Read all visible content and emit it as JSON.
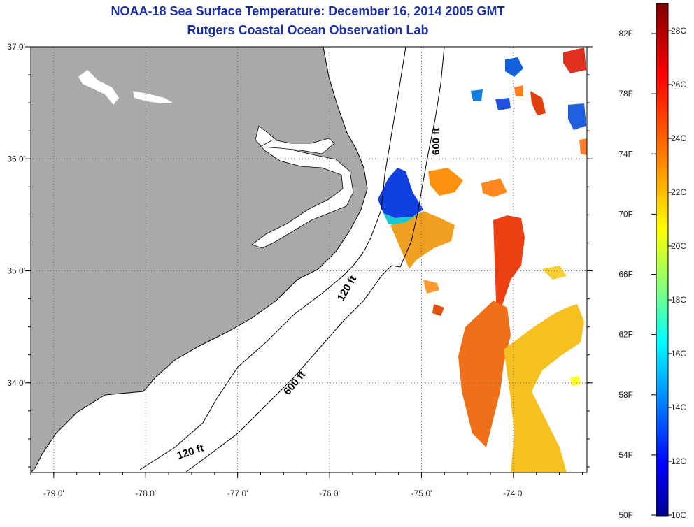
{
  "title": {
    "line1": "NOAA-18 Sea Surface Temperature:  December 16, 2014 2005 GMT",
    "line2": "Rutgers Coastal Ocean Observation Lab"
  },
  "map": {
    "lon_range": [
      -79.25,
      -73.2
    ],
    "lat_range": [
      33.2,
      37.0
    ],
    "lon_ticks": [
      {
        "value": -79,
        "label": "-79 0'"
      },
      {
        "value": -78,
        "label": "-78 0'"
      },
      {
        "value": -77,
        "label": "-77 0'"
      },
      {
        "value": -76,
        "label": "-76 0'"
      },
      {
        "value": -75,
        "label": "-75 0'"
      },
      {
        "value": -74,
        "label": "-74 0'"
      }
    ],
    "lat_ticks": [
      {
        "value": 37,
        "label": "37 0'"
      },
      {
        "value": 36,
        "label": "36 0'"
      },
      {
        "value": 35,
        "label": "35 0'"
      },
      {
        "value": 34,
        "label": "34 0'"
      }
    ],
    "contour_labels": [
      "600 ft",
      "120 ft",
      "600 ft",
      "120 ft"
    ],
    "land_color": "#a9a9a9"
  },
  "colorbar": {
    "fahrenheit_labels": [
      "82F",
      "78F",
      "74F",
      "70F",
      "66F",
      "62F",
      "58F",
      "54F",
      "50F"
    ],
    "celsius_labels": [
      "28C",
      "26C",
      "24C",
      "22C",
      "20C",
      "18C",
      "16C",
      "14C",
      "12C",
      "10C"
    ],
    "gradient_colors": [
      "#800000",
      "#ff0000",
      "#ff8000",
      "#ffff00",
      "#80ff80",
      "#00ffff",
      "#0080ff",
      "#0000ff",
      "#00008f"
    ]
  }
}
